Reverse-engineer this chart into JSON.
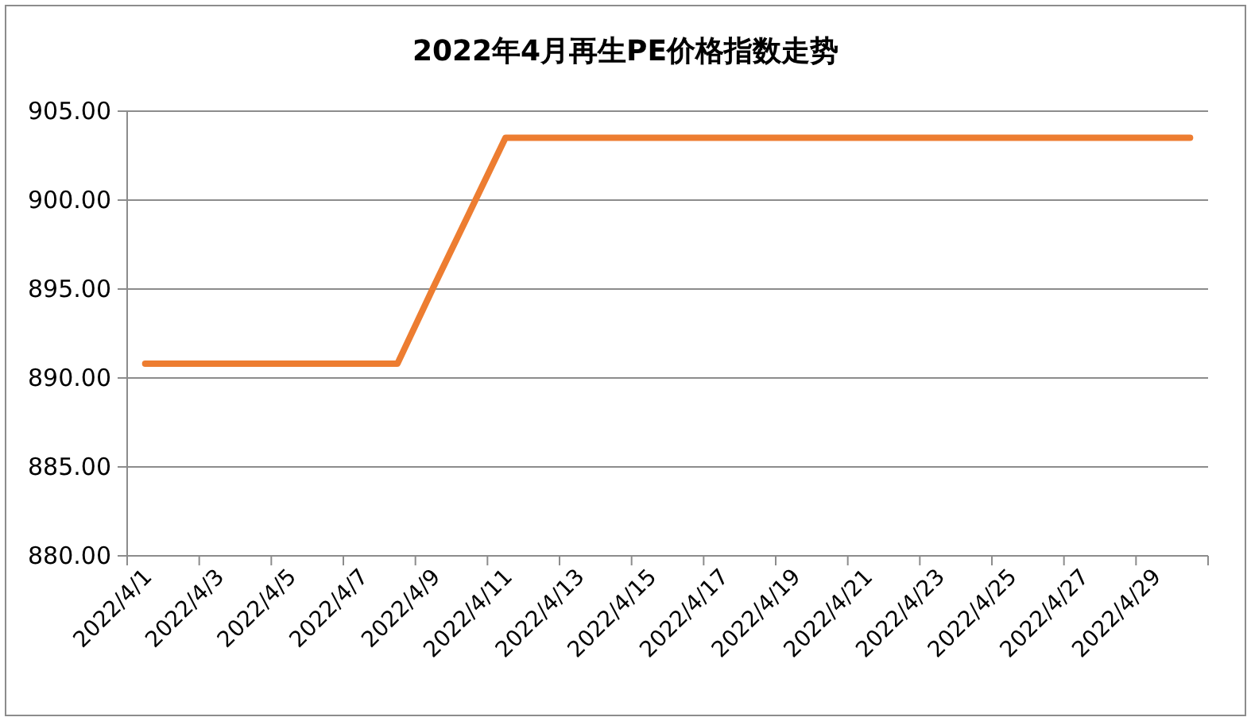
{
  "chart_data": {
    "type": "line",
    "title": "2022年4月再生PE价格指数走势",
    "categories": [
      "2022/4/1",
      null,
      "2022/4/3",
      null,
      "2022/4/5",
      null,
      "2022/4/7",
      null,
      "2022/4/9",
      null,
      "2022/4/11",
      null,
      "2022/4/13",
      null,
      "2022/4/15",
      null,
      "2022/4/17",
      null,
      "2022/4/19",
      null,
      "2022/4/21",
      null,
      "2022/4/23",
      null,
      "2022/4/25",
      null,
      "2022/4/27",
      null,
      "2022/4/29",
      null
    ],
    "series": [
      {
        "color": "#ed7d31",
        "values": [
          890.8,
          890.8,
          890.8,
          890.8,
          890.8,
          890.8,
          890.8,
          890.8,
          895.1,
          899.3,
          903.5,
          903.5,
          903.5,
          903.5,
          903.5,
          903.5,
          903.5,
          903.5,
          903.5,
          903.5,
          903.5,
          903.5,
          903.5,
          903.5,
          903.5,
          903.5,
          903.5,
          903.5,
          903.5,
          903.5
        ]
      }
    ],
    "ylim": [
      880,
      905
    ],
    "yticks": [
      {
        "value": 880,
        "label": "880.00"
      },
      {
        "value": 885,
        "label": "885.00"
      },
      {
        "value": 890,
        "label": "890.00"
      },
      {
        "value": 895,
        "label": "895.00"
      },
      {
        "value": 900,
        "label": "900.00"
      },
      {
        "value": 905,
        "label": "905.00"
      }
    ],
    "grid": "y",
    "marker": "none",
    "line_style": "solid"
  }
}
